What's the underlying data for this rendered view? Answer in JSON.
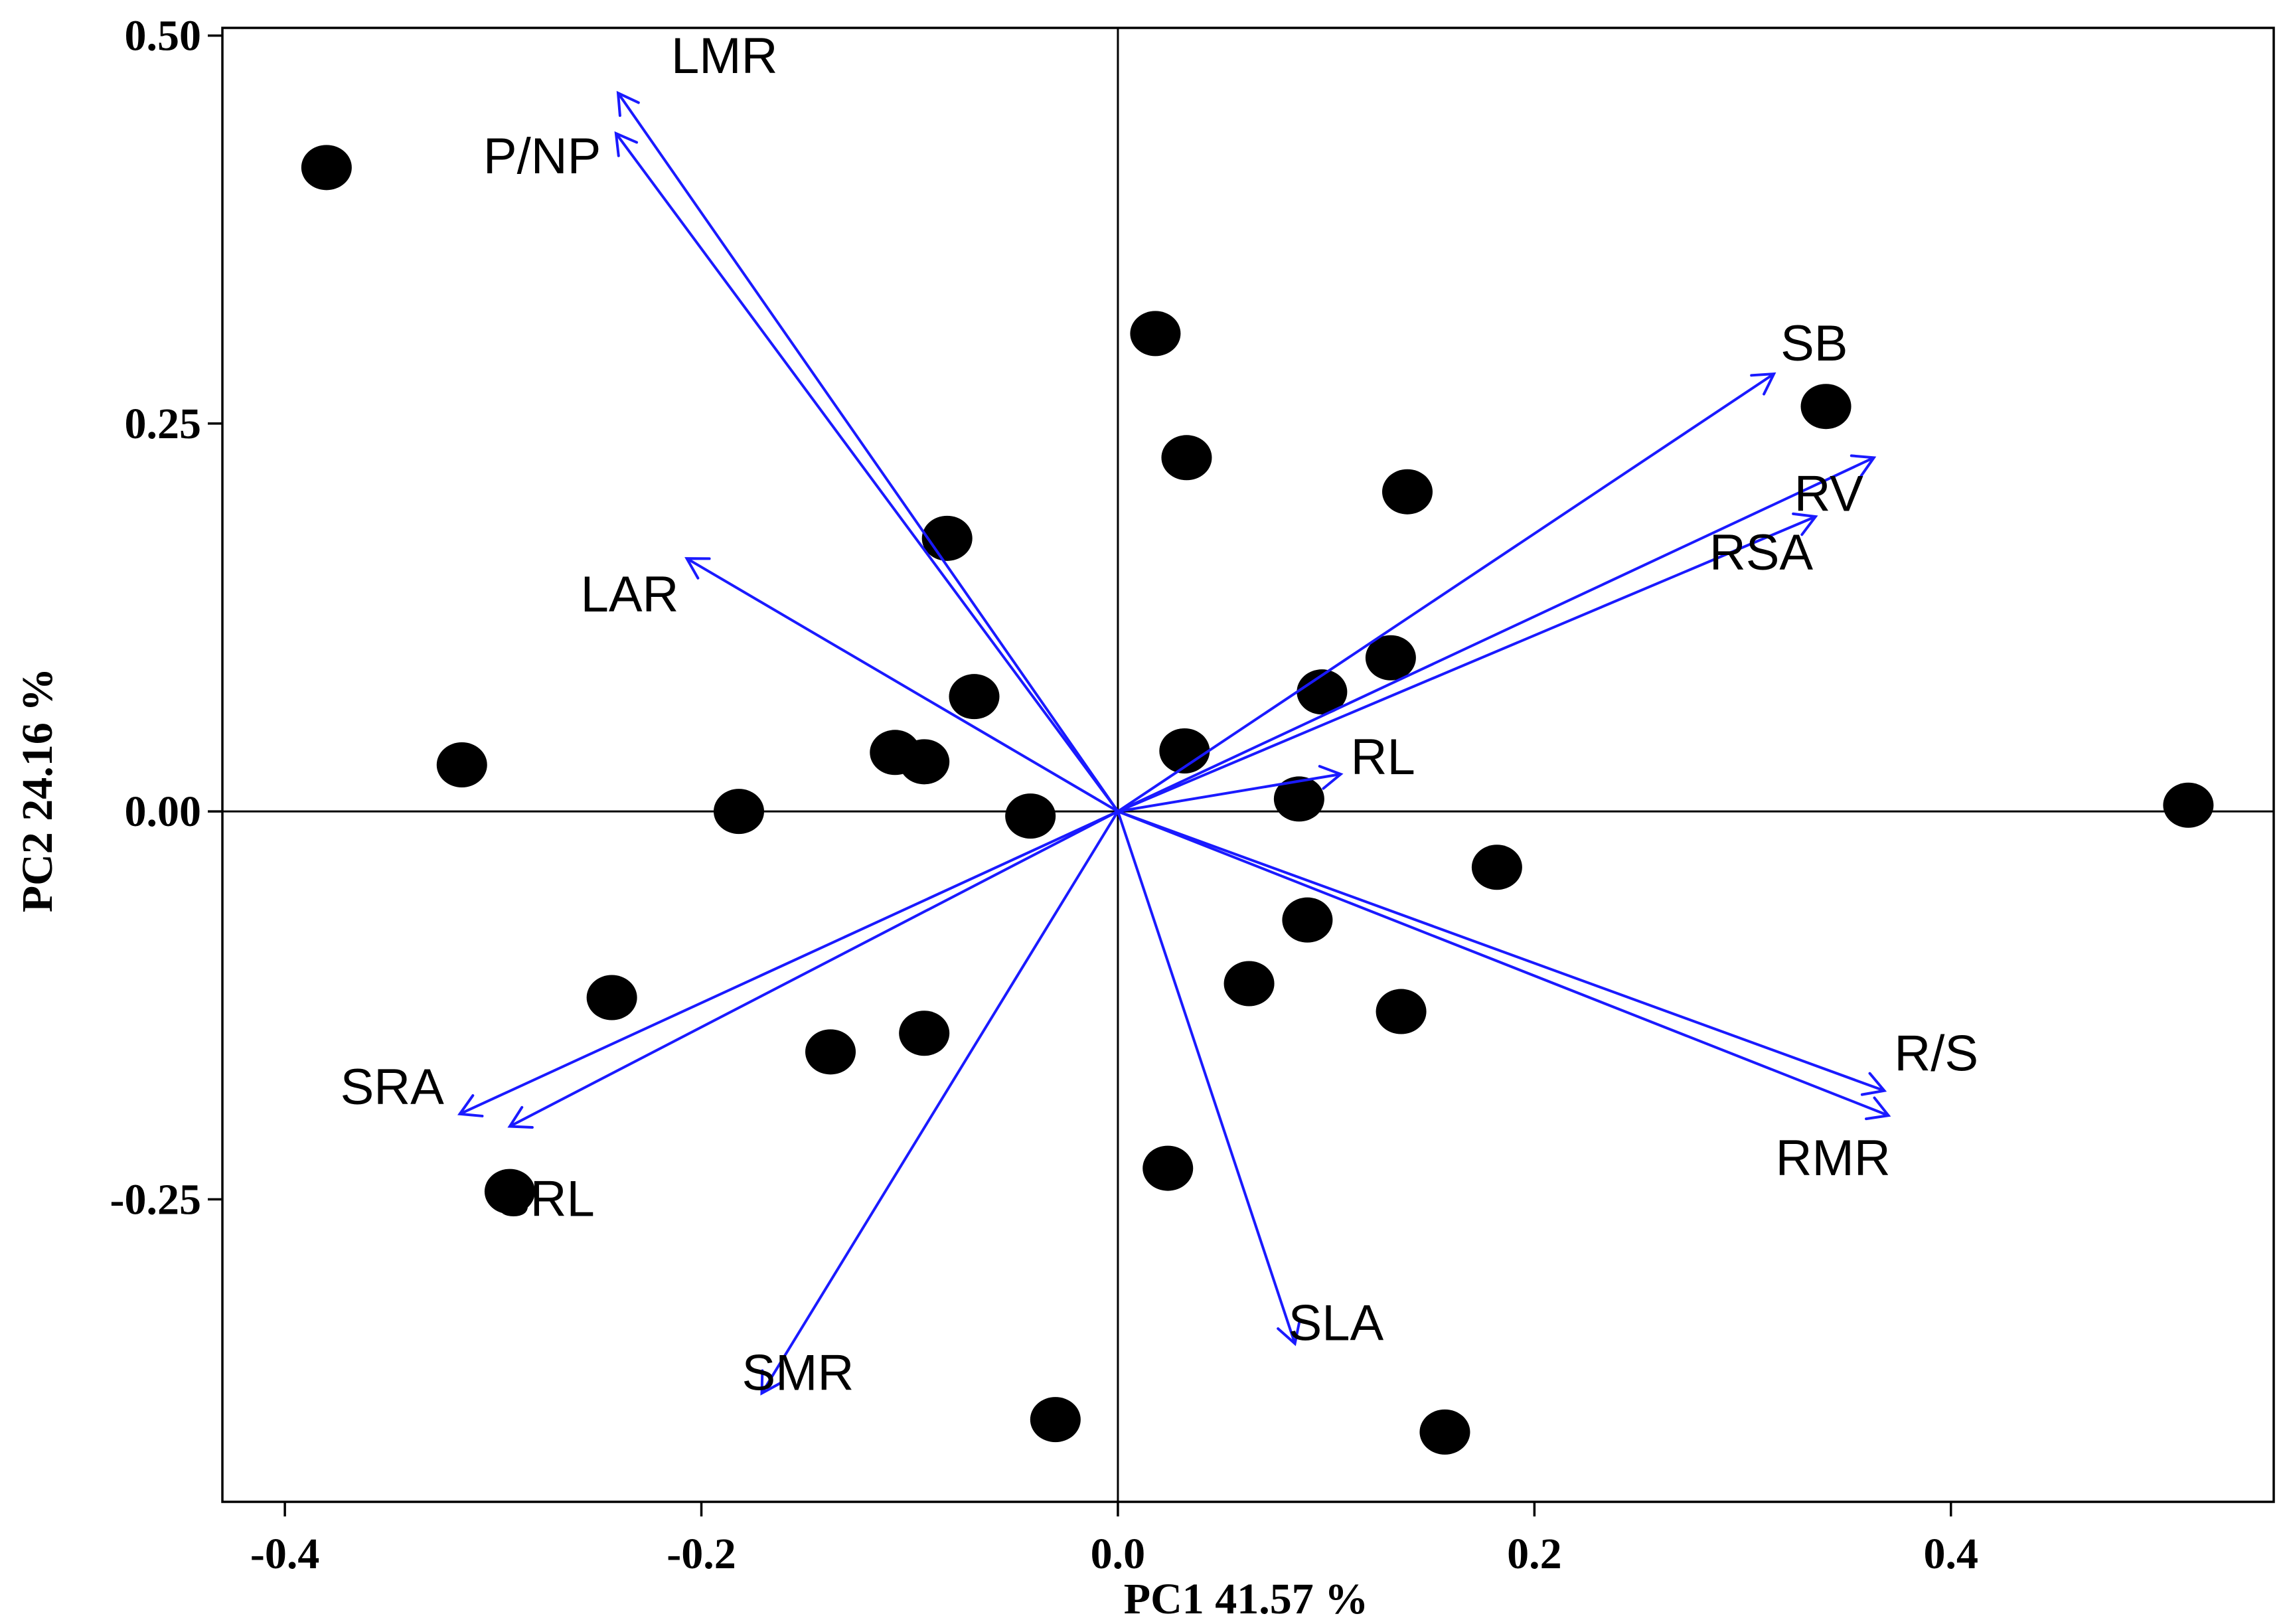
{
  "chart_data": {
    "type": "scatter",
    "subtype": "pca-biplot",
    "title": "",
    "xlabel": "PC1 41.57  %",
    "ylabel": "PC2 24.16  %",
    "xlim": [
      -0.43,
      0.555
    ],
    "ylim": [
      -0.445,
      0.505
    ],
    "xticks": [
      -0.4,
      -0.2,
      0.0,
      0.2,
      0.4
    ],
    "xtick_labels": [
      "-0.4",
      "-0.2",
      "0.0",
      "0.2",
      "0.4"
    ],
    "yticks": [
      0.5,
      0.25,
      0.0,
      -0.25
    ],
    "ytick_labels": [
      "0.50",
      "0.25",
      "0.00",
      "-0.25"
    ],
    "zero_lines": true,
    "grid": false,
    "legend": "none",
    "arrow_color": "#1a1aff",
    "point_color": "#000000",
    "points": [
      {
        "x": -0.38,
        "y": 0.415
      },
      {
        "x": 0.018,
        "y": 0.308
      },
      {
        "x": 0.34,
        "y": 0.261
      },
      {
        "x": 0.033,
        "y": 0.228
      },
      {
        "x": 0.139,
        "y": 0.206
      },
      {
        "x": -0.082,
        "y": 0.176
      },
      {
        "x": 0.131,
        "y": 0.099
      },
      {
        "x": 0.098,
        "y": 0.077
      },
      {
        "x": -0.069,
        "y": 0.074
      },
      {
        "x": -0.315,
        "y": 0.03
      },
      {
        "x": -0.107,
        "y": 0.038
      },
      {
        "x": -0.093,
        "y": 0.032
      },
      {
        "x": 0.032,
        "y": 0.039
      },
      {
        "x": 0.087,
        "y": 0.008
      },
      {
        "x": -0.182,
        "y": 0.0
      },
      {
        "x": -0.042,
        "y": -0.003
      },
      {
        "x": 0.514,
        "y": 0.004
      },
      {
        "x": 0.182,
        "y": -0.036
      },
      {
        "x": 0.091,
        "y": -0.07
      },
      {
        "x": 0.063,
        "y": -0.111
      },
      {
        "x": 0.136,
        "y": -0.129
      },
      {
        "x": -0.243,
        "y": -0.12
      },
      {
        "x": -0.138,
        "y": -0.155
      },
      {
        "x": -0.093,
        "y": -0.143
      },
      {
        "x": 0.024,
        "y": -0.23
      },
      {
        "x": -0.292,
        "y": -0.245
      },
      {
        "x": -0.03,
        "y": -0.392
      },
      {
        "x": 0.157,
        "y": -0.4
      }
    ],
    "loadings": [
      {
        "name": "LMR",
        "x": -0.24,
        "y": 0.463
      },
      {
        "name": "P/NP",
        "x": -0.241,
        "y": 0.437
      },
      {
        "name": "LAR",
        "x": -0.207,
        "y": 0.163
      },
      {
        "name": "SB",
        "x": 0.315,
        "y": 0.282
      },
      {
        "name": "RV",
        "x": 0.363,
        "y": 0.228
      },
      {
        "name": "RSA",
        "x": 0.335,
        "y": 0.19
      },
      {
        "name": "RL",
        "x": 0.107,
        "y": 0.024
      },
      {
        "name": "R/S",
        "x": 0.368,
        "y": -0.18
      },
      {
        "name": "RMR",
        "x": 0.37,
        "y": -0.196
      },
      {
        "name": "SLA",
        "x": 0.085,
        "y": -0.343
      },
      {
        "name": "SMR",
        "x": -0.171,
        "y": -0.375
      },
      {
        "name": "SRA",
        "x": -0.316,
        "y": -0.195
      },
      {
        "name": "SRL",
        "x": -0.292,
        "y": -0.203
      }
    ]
  }
}
